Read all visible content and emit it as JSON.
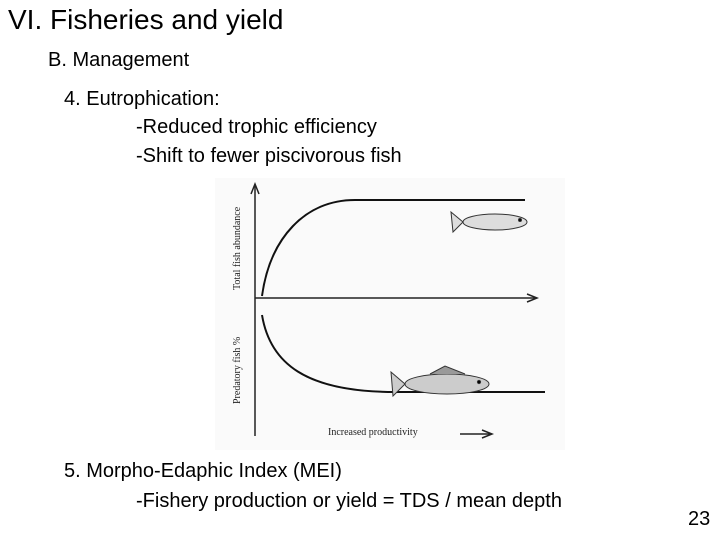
{
  "slide": {
    "title": "VI. Fisheries and yield",
    "subtitle": "B. Management",
    "items": [
      {
        "heading": "4. Eutrophication:",
        "points": [
          "-Reduced trophic efficiency",
          "-Shift to fewer piscivorous fish"
        ]
      },
      {
        "heading": "5. Morpho-Edaphic Index (MEI)",
        "points": [
          "-Fishery production or yield = TDS / mean depth"
        ]
      }
    ],
    "figure": {
      "y_label_top": "Total fish abundance",
      "y_label_bottom": "Predatory fish %",
      "x_label": "Increased productivity"
    },
    "page_number": "23"
  }
}
